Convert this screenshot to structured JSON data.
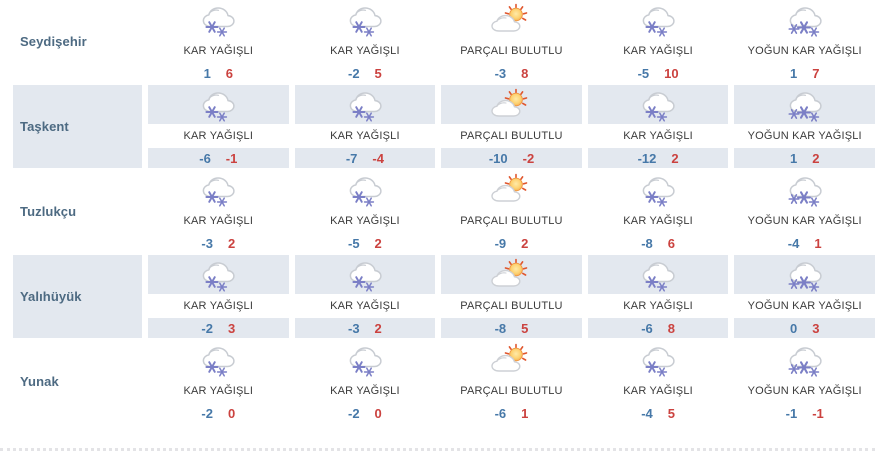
{
  "table": {
    "conditions_legend": [
      "KAR YAĞIŞLI",
      "PARÇALI BULUTLU",
      "YOĞUN KAR YAĞIŞLI"
    ],
    "rows": [
      {
        "city": "Seydişehir",
        "cells": [
          {
            "icon": "snow-icon",
            "condition": "KAR YAĞIŞLI",
            "min": "1",
            "max": "6"
          },
          {
            "icon": "snow-icon",
            "condition": "KAR YAĞIŞLI",
            "min": "-2",
            "max": "5"
          },
          {
            "icon": "partly-cloudy-icon",
            "condition": "PARÇALI BULUTLU",
            "min": "-3",
            "max": "8"
          },
          {
            "icon": "snow-icon",
            "condition": "KAR YAĞIŞLI",
            "min": "-5",
            "max": "10"
          },
          {
            "icon": "heavy-snow-icon",
            "condition": "YOĞUN KAR YAĞIŞLI",
            "min": "1",
            "max": "7"
          }
        ]
      },
      {
        "city": "Taşkent",
        "cells": [
          {
            "icon": "snow-icon",
            "condition": "KAR YAĞIŞLI",
            "min": "-6",
            "max": "-1"
          },
          {
            "icon": "snow-icon",
            "condition": "KAR YAĞIŞLI",
            "min": "-7",
            "max": "-4"
          },
          {
            "icon": "partly-cloudy-icon",
            "condition": "PARÇALI BULUTLU",
            "min": "-10",
            "max": "-2"
          },
          {
            "icon": "snow-icon",
            "condition": "KAR YAĞIŞLI",
            "min": "-12",
            "max": "2"
          },
          {
            "icon": "heavy-snow-icon",
            "condition": "YOĞUN KAR YAĞIŞLI",
            "min": "1",
            "max": "2"
          }
        ]
      },
      {
        "city": "Tuzlukçu",
        "cells": [
          {
            "icon": "snow-icon",
            "condition": "KAR YAĞIŞLI",
            "min": "-3",
            "max": "2"
          },
          {
            "icon": "snow-icon",
            "condition": "KAR YAĞIŞLI",
            "min": "-5",
            "max": "2"
          },
          {
            "icon": "partly-cloudy-icon",
            "condition": "PARÇALI BULUTLU",
            "min": "-9",
            "max": "2"
          },
          {
            "icon": "snow-icon",
            "condition": "KAR YAĞIŞLI",
            "min": "-8",
            "max": "6"
          },
          {
            "icon": "heavy-snow-icon",
            "condition": "YOĞUN KAR YAĞIŞLI",
            "min": "-4",
            "max": "1"
          }
        ]
      },
      {
        "city": "Yalıhüyük",
        "cells": [
          {
            "icon": "snow-icon",
            "condition": "KAR YAĞIŞLI",
            "min": "-2",
            "max": "3"
          },
          {
            "icon": "snow-icon",
            "condition": "KAR YAĞIŞLI",
            "min": "-3",
            "max": "2"
          },
          {
            "icon": "partly-cloudy-icon",
            "condition": "PARÇALI BULUTLU",
            "min": "-8",
            "max": "5"
          },
          {
            "icon": "snow-icon",
            "condition": "KAR YAĞIŞLI",
            "min": "-6",
            "max": "8"
          },
          {
            "icon": "heavy-snow-icon",
            "condition": "YOĞUN KAR YAĞIŞLI",
            "min": "0",
            "max": "3"
          }
        ]
      },
      {
        "city": "Yunak",
        "cells": [
          {
            "icon": "snow-icon",
            "condition": "KAR YAĞIŞLI",
            "min": "-2",
            "max": "0"
          },
          {
            "icon": "snow-icon",
            "condition": "KAR YAĞIŞLI",
            "min": "-2",
            "max": "0"
          },
          {
            "icon": "partly-cloudy-icon",
            "condition": "PARÇALI BULUTLU",
            "min": "-6",
            "max": "1"
          },
          {
            "icon": "snow-icon",
            "condition": "KAR YAĞIŞLI",
            "min": "-4",
            "max": "5"
          },
          {
            "icon": "heavy-snow-icon",
            "condition": "YOĞUN KAR YAĞIŞLI",
            "min": "-1",
            "max": "-1"
          }
        ]
      }
    ]
  },
  "colors": {
    "alt_row_bg": "#e3e8ef",
    "min_temp": "#4678a8",
    "max_temp": "#cb423f",
    "city_text": "#4d6a82",
    "condition_text": "#3b3b3b",
    "snowflake": "#7b7fc6",
    "cloud_outline": "#c8ccd2",
    "sun_rays": "#e0562e"
  }
}
